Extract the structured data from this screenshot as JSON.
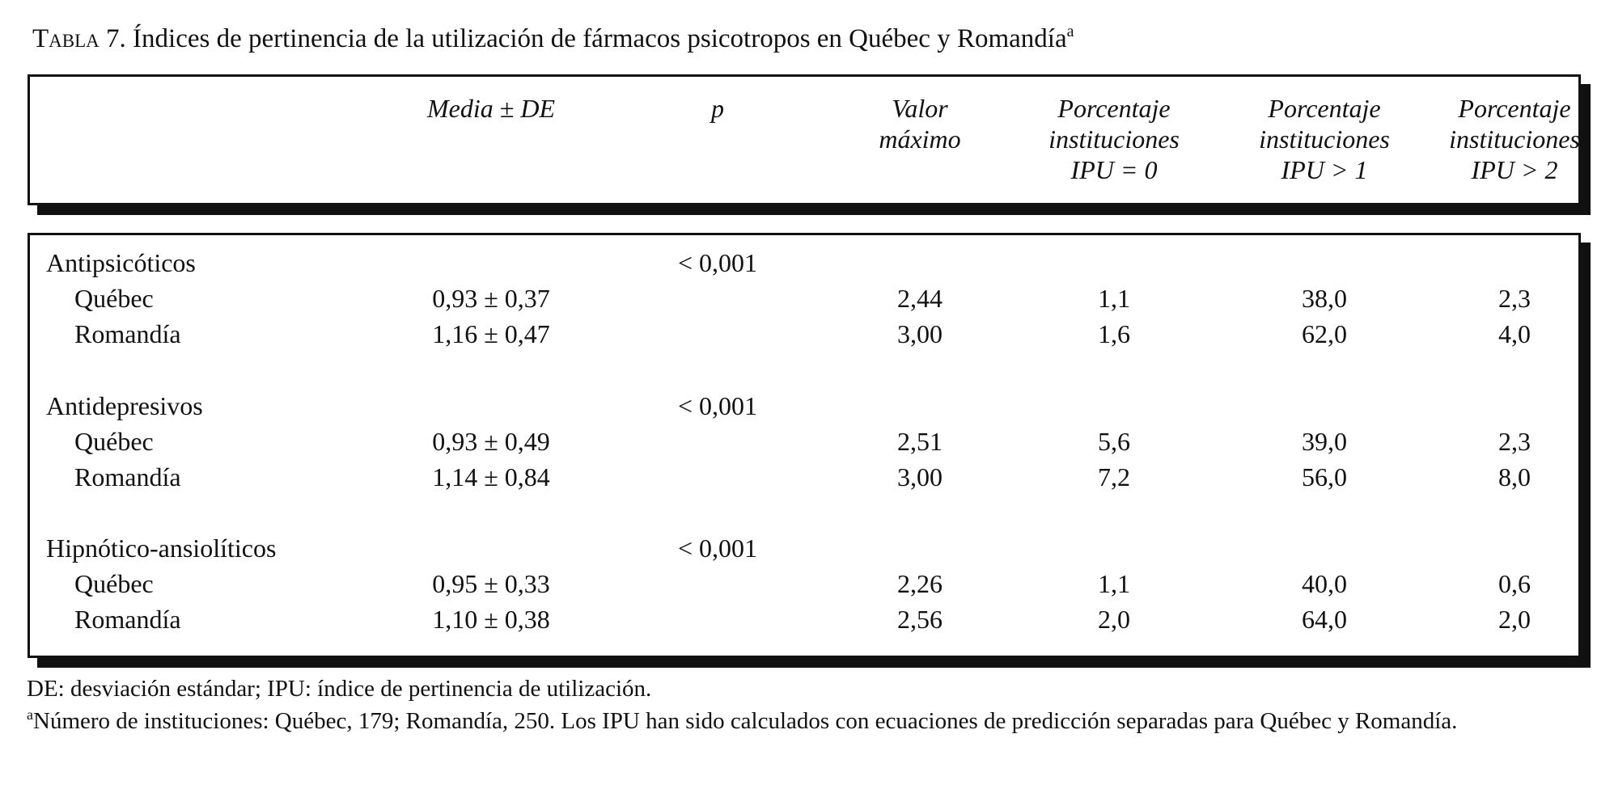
{
  "caption": {
    "prefix": "Tabla 7.",
    "text": " Índices de pertinencia de la utilización de fármacos psicotropos en Québec y Romandía",
    "marker": "a"
  },
  "headers": [
    [
      "Media ± DE"
    ],
    [
      "p"
    ],
    [
      "Valor",
      "máximo"
    ],
    [
      "Porcentaje",
      "instituciones",
      "IPU = 0"
    ],
    [
      "Porcentaje",
      "instituciones",
      "IPU > 1"
    ],
    [
      "Porcentaje",
      "instituciones",
      "IPU > 2"
    ]
  ],
  "groups": [
    {
      "name": "Antipsicóticos",
      "p": "< 0,001",
      "rows": [
        {
          "region": "Québec",
          "mean": "0,93 ± 0,37",
          "max": "2,44",
          "ipu0": "1,1",
          "ipu1": "38,0",
          "ipu2": "2,3"
        },
        {
          "region": "Romandía",
          "mean": "1,16 ± 0,47",
          "max": "3,00",
          "ipu0": "1,6",
          "ipu1": "62,0",
          "ipu2": "4,0"
        }
      ]
    },
    {
      "name": "Antidepresivos",
      "p": "< 0,001",
      "rows": [
        {
          "region": "Québec",
          "mean": "0,93 ± 0,49",
          "max": "2,51",
          "ipu0": "5,6",
          "ipu1": "39,0",
          "ipu2": "2,3"
        },
        {
          "region": "Romandía",
          "mean": "1,14 ± 0,84",
          "max": "3,00",
          "ipu0": "7,2",
          "ipu1": "56,0",
          "ipu2": "8,0"
        }
      ]
    },
    {
      "name": "Hipnótico-ansiolíticos",
      "p": "< 0,001",
      "rows": [
        {
          "region": "Québec",
          "mean": "0,95 ± 0,33",
          "max": "2,26",
          "ipu0": "1,1",
          "ipu1": "40,0",
          "ipu2": "0,6"
        },
        {
          "region": "Romandía",
          "mean": "1,10 ± 0,38",
          "max": "2,56",
          "ipu0": "2,0",
          "ipu1": "64,0",
          "ipu2": "2,0"
        }
      ]
    }
  ],
  "footnotes": {
    "abbrev": "DE: desviación estándar; IPU: índice de pertinencia de utilización.",
    "marker": "a",
    "note": "Número de instituciones: Québec, 179; Romandía, 250. Los IPU han sido calculados con ecuaciones de predicción separadas para Québec y Romandía."
  }
}
